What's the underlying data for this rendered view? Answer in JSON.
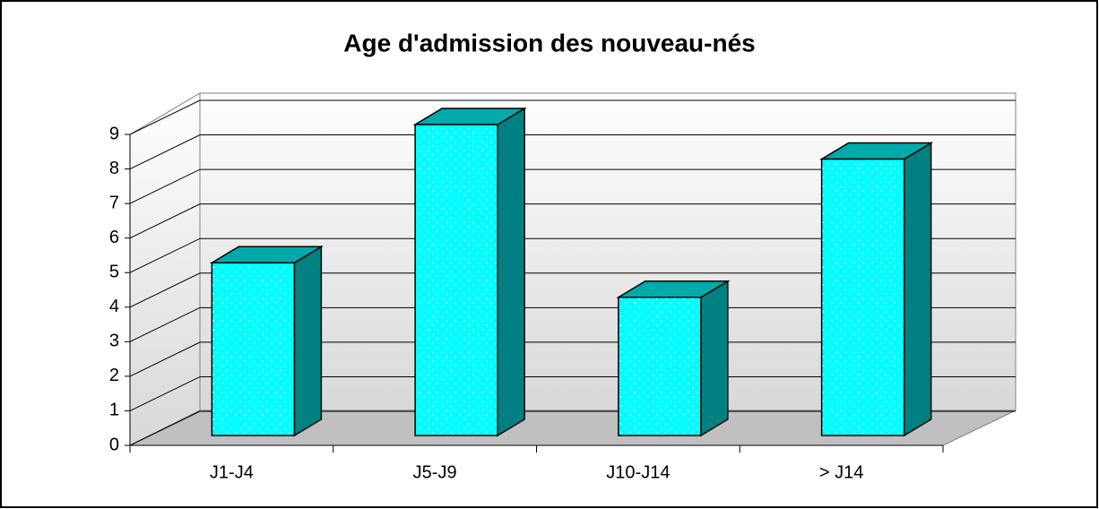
{
  "chart_data": {
    "type": "bar3d",
    "title": "Age d'admission des nouveau-nés",
    "categories": [
      "J1-J4",
      "J5-J9",
      "J10-J14",
      "> J14"
    ],
    "values": [
      5,
      9,
      4,
      8
    ],
    "color": "#00ffff",
    "ylim": [
      0,
      9
    ],
    "yticks": [
      0,
      1,
      2,
      3,
      4,
      5,
      6,
      7,
      8,
      9
    ],
    "grid": true
  }
}
